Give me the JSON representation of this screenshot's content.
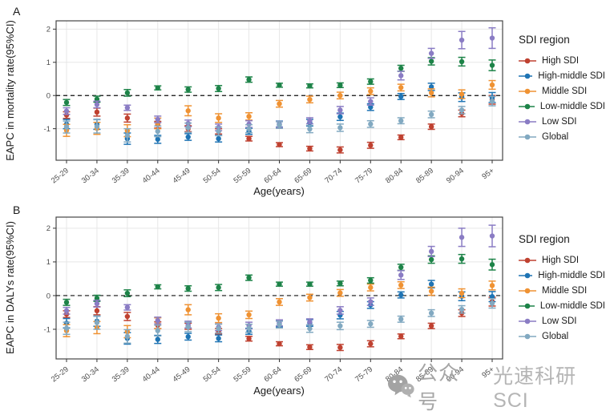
{
  "figure": {
    "background": "#ffffff"
  },
  "legend": {
    "title": "SDI region",
    "position": "right",
    "items": [
      {
        "label": "High SDI",
        "color": "#bf4130"
      },
      {
        "label": "High-middle SDI",
        "color": "#1f74b4"
      },
      {
        "label": "Middle SDI",
        "color": "#ef9233"
      },
      {
        "label": "Low-middle SDI",
        "color": "#1d8348"
      },
      {
        "label": "Low SDI",
        "color": "#8a7cc4"
      },
      {
        "label": "Global",
        "color": "#82a9c1"
      }
    ]
  },
  "watermark": {
    "icon": "wechat-icon",
    "prefix": "公众号",
    "name": "光速科研SCI"
  },
  "style_colors": {
    "grid": "#e7e7e7",
    "panel_border": "#454545",
    "tick_text": "#4d4d4d",
    "reference_line": "#111111"
  },
  "chart_data": [
    {
      "panel_label": "A",
      "type": "scatter",
      "subtype": "point-errorbar",
      "title": "",
      "xlabel": "Age(years)",
      "ylabel": "EAPC in mortality rate(95%CI)",
      "categories": [
        "25-29",
        "30-34",
        "35-39",
        "40-44",
        "45-49",
        "50-54",
        "55-59",
        "60-64",
        "65-69",
        "70-74",
        "75-79",
        "80-84",
        "85-89",
        "90-94",
        "95+"
      ],
      "yticks": [
        -1,
        0,
        1,
        2
      ],
      "ylim": [
        -1.95,
        2.25
      ],
      "refline": 0,
      "grid": true,
      "legend_position": "right",
      "series": [
        {
          "name": "High SDI",
          "color": "#bf4130",
          "values": [
            -0.59,
            -0.5,
            -0.68,
            -0.88,
            -1.0,
            -1.08,
            -1.3,
            -1.48,
            -1.6,
            -1.64,
            -1.5,
            -1.26,
            -0.94,
            -0.54,
            -0.13
          ],
          "err": [
            0.1,
            0.12,
            0.12,
            0.1,
            0.09,
            0.08,
            0.07,
            0.06,
            0.07,
            0.09,
            0.09,
            0.07,
            0.08,
            0.1,
            0.13
          ]
        },
        {
          "name": "High-middle SDI",
          "color": "#1f74b4",
          "values": [
            -0.86,
            -0.87,
            -1.3,
            -1.32,
            -1.25,
            -1.3,
            -1.08,
            -0.86,
            -0.82,
            -0.64,
            -0.35,
            -0.03,
            0.26,
            -0.05,
            -0.06
          ],
          "err": [
            0.14,
            0.15,
            0.17,
            0.12,
            0.1,
            0.1,
            0.09,
            0.09,
            0.1,
            0.11,
            0.1,
            0.09,
            0.11,
            0.13,
            0.15
          ]
        },
        {
          "name": "Middle SDI",
          "color": "#ef9233",
          "values": [
            -1.05,
            -0.99,
            -1.06,
            -0.84,
            -0.46,
            -0.68,
            -0.63,
            -0.25,
            -0.12,
            0.0,
            0.13,
            0.24,
            0.08,
            0.04,
            0.32
          ],
          "err": [
            0.18,
            0.18,
            0.18,
            0.16,
            0.15,
            0.13,
            0.11,
            0.1,
            0.1,
            0.1,
            0.1,
            0.1,
            0.12,
            0.13,
            0.13
          ]
        },
        {
          "name": "Low-middle SDI",
          "color": "#1d8348",
          "values": [
            -0.21,
            -0.11,
            0.08,
            0.23,
            0.18,
            0.21,
            0.48,
            0.31,
            0.29,
            0.31,
            0.42,
            0.82,
            1.03,
            1.02,
            0.91
          ],
          "err": [
            0.09,
            0.09,
            0.1,
            0.06,
            0.08,
            0.09,
            0.08,
            0.06,
            0.06,
            0.07,
            0.08,
            0.09,
            0.11,
            0.13,
            0.16
          ]
        },
        {
          "name": "Low SDI",
          "color": "#8a7cc4",
          "values": [
            -0.47,
            -0.27,
            -0.37,
            -0.72,
            -0.84,
            -0.96,
            -0.86,
            -0.87,
            -0.76,
            -0.44,
            -0.18,
            0.6,
            1.27,
            1.67,
            1.73
          ],
          "err": [
            0.1,
            0.1,
            0.08,
            0.1,
            0.1,
            0.1,
            0.1,
            0.09,
            0.09,
            0.11,
            0.11,
            0.13,
            0.15,
            0.26,
            0.31
          ]
        },
        {
          "name": "Global",
          "color": "#82a9c1",
          "values": [
            -0.95,
            -0.93,
            -1.2,
            -1.08,
            -0.97,
            -1.08,
            -1.0,
            -0.89,
            -1.01,
            -0.97,
            -0.86,
            -0.76,
            -0.57,
            -0.44,
            -0.17
          ],
          "err": [
            0.18,
            0.2,
            0.2,
            0.16,
            0.14,
            0.13,
            0.12,
            0.1,
            0.11,
            0.11,
            0.1,
            0.09,
            0.1,
            0.11,
            0.14
          ]
        }
      ]
    },
    {
      "panel_label": "B",
      "type": "scatter",
      "subtype": "point-errorbar",
      "title": "",
      "xlabel": "Age(years)",
      "ylabel": "EAPC in DALYs rate(95%CI)",
      "categories": [
        "25-29",
        "30-34",
        "35-39",
        "40-44",
        "45-49",
        "50-54",
        "55-59",
        "60-64",
        "65-69",
        "70-74",
        "75-79",
        "80-84",
        "85-89",
        "90-94",
        "95+"
      ],
      "yticks": [
        -1,
        0,
        1,
        2
      ],
      "ylim": [
        -1.88,
        2.33
      ],
      "refline": 0,
      "grid": true,
      "legend_position": "right",
      "series": [
        {
          "name": "High SDI",
          "color": "#bf4130",
          "values": [
            -0.55,
            -0.45,
            -0.62,
            -0.88,
            -0.91,
            -1.06,
            -1.28,
            -1.43,
            -1.53,
            -1.54,
            -1.43,
            -1.21,
            -0.9,
            -0.52,
            -0.18
          ],
          "err": [
            0.1,
            0.12,
            0.12,
            0.1,
            0.09,
            0.08,
            0.07,
            0.06,
            0.07,
            0.09,
            0.09,
            0.07,
            0.08,
            0.1,
            0.13
          ]
        },
        {
          "name": "High-middle SDI",
          "color": "#1f74b4",
          "values": [
            -0.82,
            -0.76,
            -1.27,
            -1.3,
            -1.22,
            -1.27,
            -1.06,
            -0.84,
            -0.81,
            -0.58,
            -0.28,
            0.02,
            0.34,
            -0.02,
            -0.03
          ],
          "err": [
            0.14,
            0.15,
            0.17,
            0.12,
            0.1,
            0.1,
            0.09,
            0.09,
            0.1,
            0.11,
            0.1,
            0.09,
            0.11,
            0.13,
            0.15
          ]
        },
        {
          "name": "Middle SDI",
          "color": "#ef9233",
          "values": [
            -1.04,
            -0.95,
            -1.07,
            -0.82,
            -0.42,
            -0.67,
            -0.57,
            -0.19,
            -0.06,
            0.08,
            0.24,
            0.31,
            0.13,
            0.07,
            0.3
          ],
          "err": [
            0.18,
            0.18,
            0.18,
            0.16,
            0.15,
            0.13,
            0.11,
            0.1,
            0.1,
            0.1,
            0.1,
            0.1,
            0.12,
            0.13,
            0.13
          ]
        },
        {
          "name": "Low-middle SDI",
          "color": "#1d8348",
          "values": [
            -0.2,
            -0.08,
            0.07,
            0.26,
            0.21,
            0.24,
            0.53,
            0.34,
            0.34,
            0.36,
            0.45,
            0.84,
            1.07,
            1.09,
            0.92
          ],
          "err": [
            0.09,
            0.09,
            0.1,
            0.06,
            0.08,
            0.09,
            0.08,
            0.06,
            0.06,
            0.07,
            0.08,
            0.09,
            0.11,
            0.13,
            0.16
          ]
        },
        {
          "name": "Low SDI",
          "color": "#8a7cc4",
          "values": [
            -0.45,
            -0.24,
            -0.35,
            -0.74,
            -0.86,
            -0.94,
            -0.89,
            -0.81,
            -0.78,
            -0.44,
            -0.18,
            0.61,
            1.31,
            1.73,
            1.77
          ],
          "err": [
            0.1,
            0.1,
            0.08,
            0.1,
            0.1,
            0.1,
            0.1,
            0.09,
            0.09,
            0.11,
            0.11,
            0.13,
            0.15,
            0.27,
            0.32
          ]
        },
        {
          "name": "Global",
          "color": "#82a9c1",
          "values": [
            -0.97,
            -0.8,
            -1.21,
            -1.04,
            -0.93,
            -0.98,
            -0.97,
            -0.86,
            -0.98,
            -0.9,
            -0.84,
            -0.7,
            -0.52,
            -0.41,
            -0.23
          ],
          "err": [
            0.18,
            0.2,
            0.2,
            0.16,
            0.14,
            0.13,
            0.12,
            0.1,
            0.11,
            0.11,
            0.1,
            0.09,
            0.1,
            0.11,
            0.14
          ]
        }
      ]
    }
  ]
}
